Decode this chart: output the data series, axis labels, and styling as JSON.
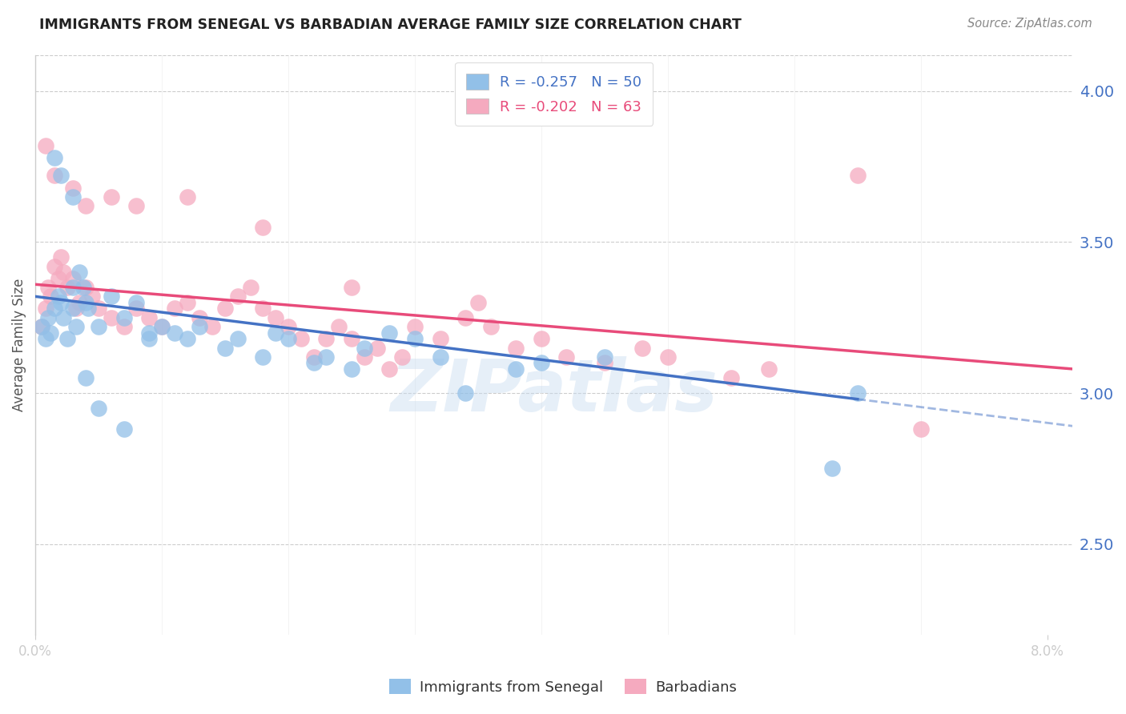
{
  "title": "IMMIGRANTS FROM SENEGAL VS BARBADIAN AVERAGE FAMILY SIZE CORRELATION CHART",
  "source": "Source: ZipAtlas.com",
  "ylabel": "Average Family Size",
  "ylim": [
    2.2,
    4.12
  ],
  "xlim": [
    0.0,
    0.082
  ],
  "yticks_right": [
    2.5,
    3.0,
    3.5,
    4.0
  ],
  "legend_label1": "R = -0.257   N = 50",
  "legend_label2": "R = -0.202   N = 63",
  "legend_series1": "Immigrants from Senegal",
  "legend_series2": "Barbadians",
  "R1": -0.257,
  "N1": 50,
  "R2": -0.202,
  "N2": 63,
  "color1": "#92C0E8",
  "color2": "#F5AABF",
  "line_color1": "#4472C4",
  "line_color2": "#E84B7A",
  "background_color": "#FFFFFF",
  "watermark": "ZIPatlas",
  "senegal_x": [
    0.0005,
    0.0008,
    0.001,
    0.0012,
    0.0015,
    0.0018,
    0.002,
    0.0022,
    0.0025,
    0.003,
    0.003,
    0.0032,
    0.0035,
    0.0038,
    0.004,
    0.0042,
    0.005,
    0.006,
    0.007,
    0.008,
    0.009,
    0.01,
    0.011,
    0.012,
    0.013,
    0.015,
    0.016,
    0.018,
    0.019,
    0.02,
    0.022,
    0.023,
    0.025,
    0.026,
    0.028,
    0.03,
    0.032,
    0.034,
    0.038,
    0.04,
    0.0015,
    0.002,
    0.003,
    0.004,
    0.005,
    0.007,
    0.009,
    0.045,
    0.063,
    0.065
  ],
  "senegal_y": [
    3.22,
    3.18,
    3.25,
    3.2,
    3.28,
    3.32,
    3.3,
    3.25,
    3.18,
    3.35,
    3.28,
    3.22,
    3.4,
    3.35,
    3.3,
    3.28,
    3.22,
    3.32,
    3.25,
    3.3,
    3.18,
    3.22,
    3.2,
    3.18,
    3.22,
    3.15,
    3.18,
    3.12,
    3.2,
    3.18,
    3.1,
    3.12,
    3.08,
    3.15,
    3.2,
    3.18,
    3.12,
    3.0,
    3.08,
    3.1,
    3.78,
    3.72,
    3.65,
    3.05,
    2.95,
    2.88,
    3.2,
    3.12,
    2.75,
    3.0
  ],
  "barbadian_x": [
    0.0005,
    0.0008,
    0.001,
    0.0012,
    0.0015,
    0.0018,
    0.002,
    0.0022,
    0.0025,
    0.003,
    0.0032,
    0.0035,
    0.004,
    0.0045,
    0.005,
    0.006,
    0.007,
    0.008,
    0.009,
    0.01,
    0.011,
    0.012,
    0.013,
    0.014,
    0.015,
    0.016,
    0.017,
    0.018,
    0.019,
    0.02,
    0.021,
    0.022,
    0.023,
    0.024,
    0.025,
    0.026,
    0.027,
    0.028,
    0.029,
    0.03,
    0.032,
    0.034,
    0.036,
    0.038,
    0.04,
    0.042,
    0.045,
    0.05,
    0.055,
    0.058,
    0.0008,
    0.0015,
    0.003,
    0.004,
    0.006,
    0.008,
    0.012,
    0.018,
    0.025,
    0.035,
    0.048,
    0.065,
    0.07
  ],
  "barbadian_y": [
    3.22,
    3.28,
    3.35,
    3.32,
    3.42,
    3.38,
    3.45,
    3.4,
    3.35,
    3.38,
    3.28,
    3.3,
    3.35,
    3.32,
    3.28,
    3.25,
    3.22,
    3.28,
    3.25,
    3.22,
    3.28,
    3.3,
    3.25,
    3.22,
    3.28,
    3.32,
    3.35,
    3.28,
    3.25,
    3.22,
    3.18,
    3.12,
    3.18,
    3.22,
    3.18,
    3.12,
    3.15,
    3.08,
    3.12,
    3.22,
    3.18,
    3.25,
    3.22,
    3.15,
    3.18,
    3.12,
    3.1,
    3.12,
    3.05,
    3.08,
    3.82,
    3.72,
    3.68,
    3.62,
    3.65,
    3.62,
    3.65,
    3.55,
    3.35,
    3.3,
    3.15,
    3.72,
    2.88
  ],
  "line1_x0": 0.0,
  "line1_y0": 3.32,
  "line1_x1": 0.065,
  "line1_y1": 2.98,
  "line1_dash_x0": 0.065,
  "line1_dash_x1": 0.082,
  "line2_x0": 0.0,
  "line2_y0": 3.36,
  "line2_x1": 0.082,
  "line2_y1": 3.08
}
